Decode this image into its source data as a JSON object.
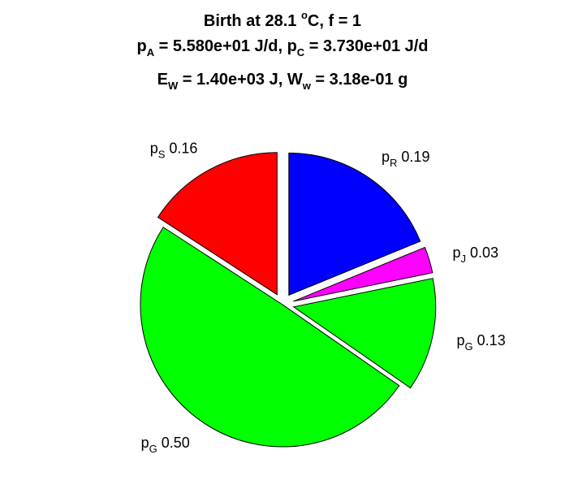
{
  "chart_data": {
    "type": "pie",
    "title": {
      "line1": {
        "prefix": "Birth at 28.1 ",
        "sup": "o",
        "suffix": "C, f = 1"
      },
      "line2": {
        "a_sym": "p",
        "a_sub": "A",
        "a_val": " = 5.580e+01 J/d, ",
        "c_sym": "p",
        "c_sub": "C",
        "c_val": " = 3.730e+01 J/d"
      },
      "line3": {
        "e_sym": "E",
        "e_sub": "W",
        "e_val": " = 1.40e+03 J, ",
        "w_sym": "W",
        "w_sub": "w",
        "w_val": " = 3.18e-01 g"
      }
    },
    "slices": [
      {
        "symbol": "p",
        "subscript": "R",
        "value": 0.19,
        "value_text": "0.19",
        "color": "#0000ff",
        "exploded": true
      },
      {
        "symbol": "p",
        "subscript": "J",
        "value": 0.03,
        "value_text": "0.03",
        "color": "#ff00ff",
        "exploded": true
      },
      {
        "symbol": "p",
        "subscript": "G",
        "value": 0.13,
        "value_text": "0.13",
        "color": "#00ff00",
        "exploded": true
      },
      {
        "symbol": "p",
        "subscript": "G",
        "value": 0.5,
        "value_text": "0.50",
        "color": "#00ff00",
        "exploded": false
      },
      {
        "symbol": "p",
        "subscript": "S",
        "value": 0.16,
        "value_text": "0.16",
        "color": "#ff0000",
        "exploded": true
      }
    ],
    "start": "12 o'clock",
    "direction": "clockwise"
  }
}
